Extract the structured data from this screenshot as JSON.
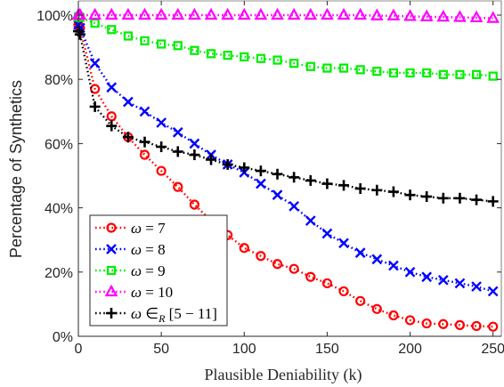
{
  "chart_data": {
    "type": "line",
    "title": "",
    "xlabel": "Plausible Deniability (k)",
    "ylabel": "Percentage of Synthetics",
    "xlim": [
      0,
      255
    ],
    "ylim": [
      0,
      100
    ],
    "x_ticks": [
      0,
      50,
      100,
      150,
      200,
      250
    ],
    "y_ticks": [
      0,
      20,
      40,
      60,
      80,
      100
    ],
    "y_tick_labels": [
      "0%",
      "20%",
      "40%",
      "60%",
      "80%",
      "100%"
    ],
    "grid": false,
    "legend_position": "bottom-left",
    "x": [
      0,
      1,
      10,
      20,
      30,
      40,
      50,
      60,
      70,
      80,
      90,
      100,
      110,
      120,
      130,
      140,
      150,
      160,
      170,
      180,
      190,
      200,
      210,
      220,
      230,
      240,
      250
    ],
    "series": [
      {
        "name": "ω = 7",
        "legend_label": {
          "var": "ω",
          "rest": " = 7"
        },
        "color": "#ff0000",
        "marker": "circle",
        "values": [
          97,
          96,
          77,
          68.5,
          62,
          56.5,
          51.5,
          46.5,
          41,
          36,
          31.5,
          27.5,
          25,
          22.5,
          21,
          18.5,
          16.5,
          14,
          11,
          8.5,
          6.5,
          5,
          4,
          3.8,
          3.5,
          3.2,
          3
        ]
      },
      {
        "name": "ω = 8",
        "legend_label": {
          "var": "ω",
          "rest": " = 8"
        },
        "color": "#0000ff",
        "marker": "x",
        "values": [
          97,
          96,
          85,
          77.5,
          73,
          70,
          66.5,
          63.5,
          60,
          56.5,
          53.5,
          51,
          47.5,
          44,
          40.5,
          36,
          32,
          29,
          26,
          24,
          22,
          20,
          18.5,
          17.5,
          16.5,
          15.5,
          14
        ]
      },
      {
        "name": "ω = 9",
        "legend_label": {
          "var": "ω",
          "rest": " = 9"
        },
        "color": "#00ee00",
        "marker": "square",
        "values": [
          99.5,
          99.3,
          97.5,
          95.5,
          93.5,
          92,
          91,
          90.5,
          89,
          88,
          87.5,
          87,
          86.5,
          86,
          85,
          84,
          83.5,
          83.5,
          83,
          82.5,
          82,
          82,
          82,
          81.5,
          81.5,
          81.5,
          81
        ]
      },
      {
        "name": "ω = 10",
        "legend_label": {
          "var": "ω",
          "rest": " = 10"
        },
        "color": "#ff00ff",
        "marker": "triangle",
        "values": [
          100,
          100,
          100,
          100,
          100,
          100,
          100,
          100,
          100,
          100,
          100,
          100,
          100,
          100,
          100,
          100,
          100,
          100,
          100,
          99.8,
          99.8,
          99.6,
          99.5,
          99.4,
          99.3,
          99.2,
          99
        ]
      },
      {
        "name": "ω ∈R [5 − 11]",
        "legend_label": {
          "var": "ω",
          "rest": " ∈",
          "sub": "R",
          "tail": " [5 − 11]"
        },
        "color": "#000000",
        "marker": "plus",
        "values": [
          95,
          94,
          71.5,
          65.5,
          62,
          60.5,
          59,
          57.5,
          56.5,
          55,
          53.5,
          52.5,
          51.5,
          50.5,
          49.5,
          48.5,
          47.5,
          47,
          46,
          45.5,
          45,
          44,
          43.5,
          43,
          43,
          42.5,
          42
        ]
      }
    ]
  }
}
